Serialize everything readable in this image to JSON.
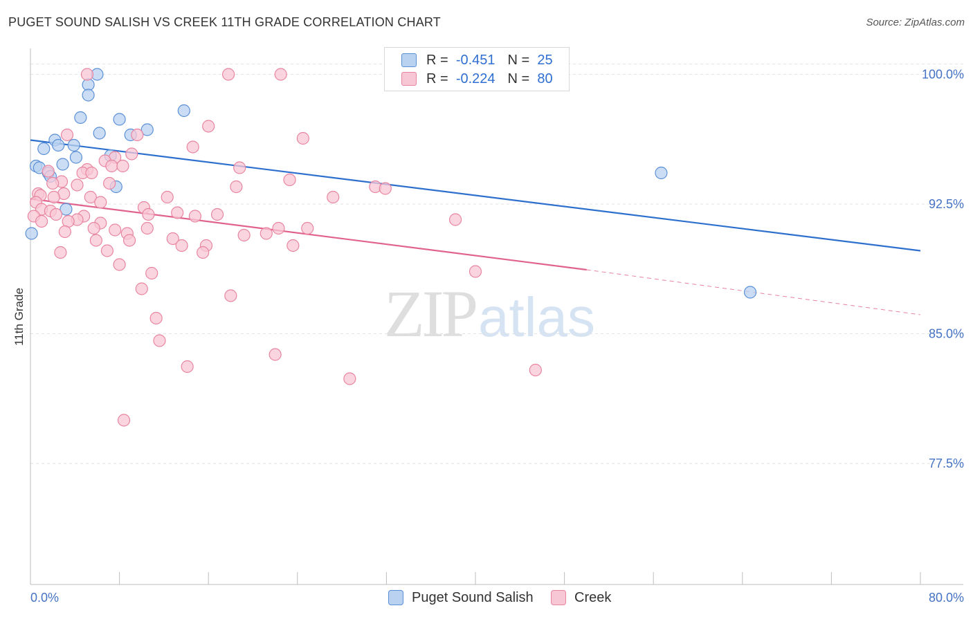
{
  "title": "PUGET SOUND SALISH VS CREEK 11TH GRADE CORRELATION CHART",
  "source": "Source: ZipAtlas.com",
  "watermark": {
    "zip": "ZIP",
    "atlas": "atlas"
  },
  "legend": {
    "rows": [
      {
        "r_label": "R =",
        "r_value": "-0.451",
        "n_label": "N =",
        "n_value": "25"
      },
      {
        "r_label": "R =",
        "r_value": "-0.224",
        "n_label": "N =",
        "n_value": "80"
      }
    ]
  },
  "bottom_legend": {
    "series1": "Puget Sound Salish",
    "series2": "Creek"
  },
  "colors": {
    "blue_fill": "#b9d2f0",
    "blue_stroke": "#5a8fd6",
    "blue_line": "#2c6fcd",
    "pink_fill": "#f8c7d5",
    "pink_stroke": "#e8849f",
    "pink_line": "#e0628d",
    "grid": "#e2e2e2",
    "tick_label": "#4472c4"
  },
  "chart_data": {
    "type": "scatter",
    "title": "PUGET SOUND SALISH VS CREEK 11TH GRADE CORRELATION CHART",
    "xlabel": "",
    "ylabel": "11th Grade",
    "xlim": [
      0,
      80
    ],
    "ylim": [
      70.5,
      101.5
    ],
    "x_tick_labels": [
      "0.0%",
      "80.0%"
    ],
    "y_ticks": [
      77.5,
      85.0,
      92.5,
      100.0
    ],
    "y_tick_labels": [
      "77.5%",
      "85.0%",
      "92.5%",
      "100.0%"
    ],
    "grid": true,
    "series": [
      {
        "name": "Puget Sound Salish",
        "color": "blue",
        "points": [
          [
            6.0,
            100.0
          ],
          [
            5.2,
            99.4
          ],
          [
            5.2,
            98.8
          ],
          [
            13.8,
            97.9
          ],
          [
            4.5,
            97.5
          ],
          [
            8.0,
            97.4
          ],
          [
            10.5,
            96.8
          ],
          [
            6.2,
            96.6
          ],
          [
            9.0,
            96.5
          ],
          [
            2.2,
            96.2
          ],
          [
            2.5,
            95.9
          ],
          [
            3.9,
            95.9
          ],
          [
            1.2,
            95.7
          ],
          [
            7.2,
            95.3
          ],
          [
            4.1,
            95.2
          ],
          [
            2.9,
            94.8
          ],
          [
            0.5,
            94.7
          ],
          [
            0.8,
            94.6
          ],
          [
            1.6,
            94.3
          ],
          [
            1.8,
            94.1
          ],
          [
            56.7,
            94.3
          ],
          [
            7.7,
            93.5
          ],
          [
            3.2,
            92.2
          ],
          [
            0.1,
            90.8
          ],
          [
            64.7,
            87.4
          ]
        ],
        "trend": {
          "x0": 0,
          "y0": 96.2,
          "x1": 80,
          "y1": 89.8
        }
      },
      {
        "name": "Creek",
        "color": "pink",
        "points": [
          [
            5.1,
            100.0
          ],
          [
            17.8,
            100.0
          ],
          [
            22.5,
            100.0
          ],
          [
            16.0,
            97.0
          ],
          [
            3.3,
            96.5
          ],
          [
            9.6,
            96.5
          ],
          [
            24.5,
            96.3
          ],
          [
            14.6,
            95.8
          ],
          [
            9.1,
            95.4
          ],
          [
            7.6,
            95.2
          ],
          [
            6.7,
            95.0
          ],
          [
            7.3,
            94.7
          ],
          [
            8.3,
            94.7
          ],
          [
            5.1,
            94.5
          ],
          [
            18.8,
            94.6
          ],
          [
            1.6,
            94.4
          ],
          [
            4.7,
            94.3
          ],
          [
            5.5,
            94.3
          ],
          [
            23.3,
            93.9
          ],
          [
            2.8,
            93.8
          ],
          [
            7.1,
            93.7
          ],
          [
            2.0,
            93.7
          ],
          [
            4.2,
            93.6
          ],
          [
            18.5,
            93.5
          ],
          [
            31.0,
            93.5
          ],
          [
            31.9,
            93.4
          ],
          [
            0.7,
            93.1
          ],
          [
            3.0,
            93.1
          ],
          [
            0.9,
            93.0
          ],
          [
            2.1,
            92.9
          ],
          [
            5.4,
            92.9
          ],
          [
            12.3,
            92.9
          ],
          [
            27.2,
            92.9
          ],
          [
            0.5,
            92.6
          ],
          [
            6.3,
            92.6
          ],
          [
            10.2,
            92.3
          ],
          [
            1.0,
            92.2
          ],
          [
            1.8,
            92.1
          ],
          [
            13.2,
            92.0
          ],
          [
            0.3,
            91.8
          ],
          [
            10.6,
            91.9
          ],
          [
            14.8,
            91.8
          ],
          [
            16.8,
            91.9
          ],
          [
            2.3,
            91.9
          ],
          [
            4.8,
            91.8
          ],
          [
            4.2,
            91.6
          ],
          [
            1.0,
            91.5
          ],
          [
            3.4,
            91.5
          ],
          [
            6.3,
            91.4
          ],
          [
            38.2,
            91.6
          ],
          [
            5.7,
            91.1
          ],
          [
            7.6,
            91.0
          ],
          [
            10.5,
            91.1
          ],
          [
            22.3,
            91.1
          ],
          [
            24.9,
            91.1
          ],
          [
            3.1,
            90.9
          ],
          [
            8.7,
            90.8
          ],
          [
            19.2,
            90.7
          ],
          [
            21.2,
            90.8
          ],
          [
            5.9,
            90.4
          ],
          [
            8.9,
            90.4
          ],
          [
            12.8,
            90.5
          ],
          [
            15.8,
            90.1
          ],
          [
            13.6,
            90.1
          ],
          [
            23.6,
            90.1
          ],
          [
            2.7,
            89.7
          ],
          [
            6.9,
            89.8
          ],
          [
            15.5,
            89.7
          ],
          [
            8.0,
            89.0
          ],
          [
            10.9,
            88.5
          ],
          [
            40.0,
            88.6
          ],
          [
            10.0,
            87.6
          ],
          [
            18.0,
            87.2
          ],
          [
            11.3,
            85.9
          ],
          [
            11.6,
            84.6
          ],
          [
            22.0,
            83.8
          ],
          [
            14.1,
            83.1
          ],
          [
            45.4,
            82.9
          ],
          [
            28.7,
            82.4
          ],
          [
            8.4,
            80.0
          ]
        ],
        "trend": {
          "x0": 0,
          "y0": 92.8,
          "x1": 50.0,
          "y1": 88.7
        },
        "trend_dashed": {
          "x0": 50.0,
          "y0": 88.7,
          "x1": 80,
          "y1": 86.1
        }
      }
    ]
  }
}
